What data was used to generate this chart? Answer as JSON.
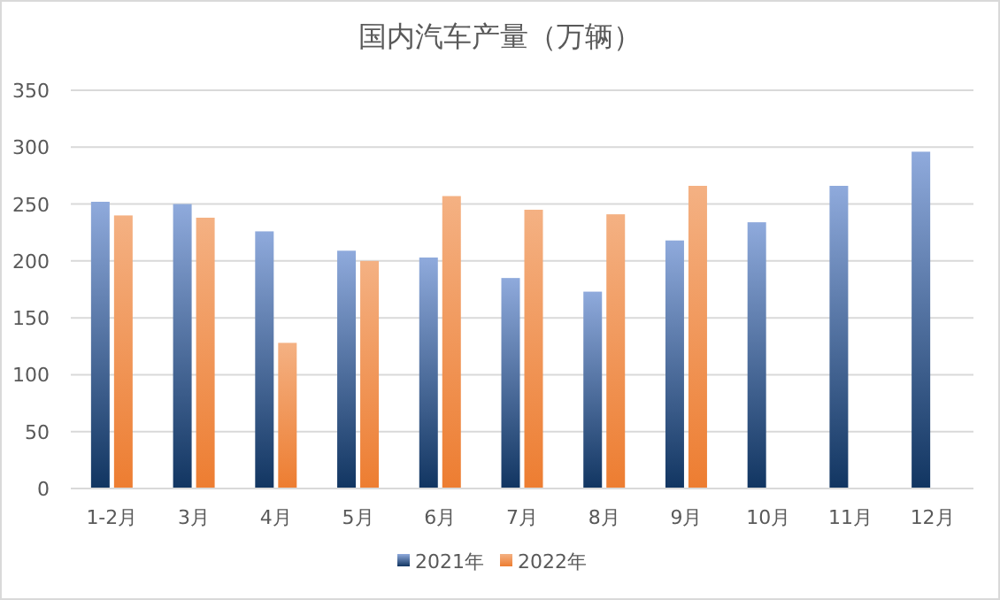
{
  "chart_data": {
    "type": "bar",
    "title": "国内汽车产量（万辆）",
    "categories": [
      "1-2月",
      "3月",
      "4月",
      "5月",
      "6月",
      "7月",
      "8月",
      "9月",
      "10月",
      "11月",
      "12月"
    ],
    "series": [
      {
        "name": "2021年",
        "color": "#4472c4",
        "values": [
          252,
          250,
          226,
          209,
          203,
          185,
          173,
          218,
          234,
          266,
          296
        ]
      },
      {
        "name": "2022年",
        "color": "#ed7d31",
        "values": [
          240,
          238,
          128,
          200,
          257,
          245,
          241,
          266,
          null,
          null,
          null
        ]
      }
    ],
    "ylim": [
      0,
      350
    ],
    "yticks": [
      0,
      50,
      100,
      150,
      200,
      250,
      300,
      350
    ],
    "grid": "y",
    "legend": "bottom"
  }
}
